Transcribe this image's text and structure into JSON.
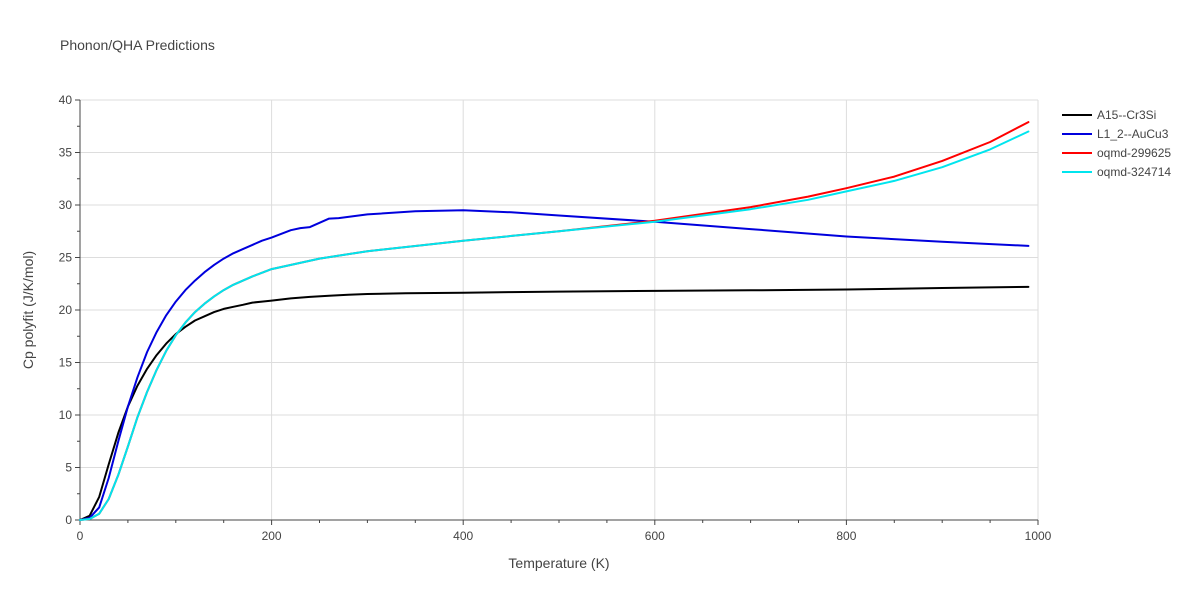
{
  "chart_data": {
    "type": "line",
    "title": "Phonon/QHA Predictions",
    "xlabel": "Temperature (K)",
    "ylabel": "Cp polyfit (J/K/mol)",
    "xlim": [
      0,
      1000
    ],
    "ylim": [
      0,
      40
    ],
    "x_ticks": [
      0,
      200,
      400,
      600,
      800,
      1000
    ],
    "y_ticks": [
      0,
      5,
      10,
      15,
      20,
      25,
      30,
      35,
      40
    ],
    "grid": true,
    "legend_position": "top-right",
    "series": [
      {
        "name": "A15--Cr3Si",
        "color": "#000000",
        "x": [
          0,
          10,
          20,
          30,
          40,
          50,
          60,
          70,
          80,
          90,
          100,
          110,
          120,
          130,
          140,
          150,
          160,
          170,
          180,
          190,
          200,
          220,
          240,
          260,
          280,
          300,
          340,
          400,
          450,
          500,
          600,
          700,
          800,
          900,
          990
        ],
        "y": [
          0,
          0.4,
          2.2,
          5.3,
          8.3,
          10.8,
          12.8,
          14.4,
          15.7,
          16.8,
          17.7,
          18.4,
          19.0,
          19.4,
          19.8,
          20.1,
          20.3,
          20.5,
          20.7,
          20.8,
          20.9,
          21.1,
          21.25,
          21.35,
          21.45,
          21.52,
          21.6,
          21.65,
          21.7,
          21.75,
          21.82,
          21.88,
          21.95,
          22.1,
          22.2
        ]
      },
      {
        "name": "L1_2--AuCu3",
        "color": "#0000dd",
        "x": [
          0,
          10,
          20,
          30,
          40,
          50,
          60,
          70,
          80,
          90,
          100,
          110,
          120,
          130,
          140,
          150,
          160,
          170,
          180,
          190,
          200,
          220,
          230,
          240,
          250,
          260,
          270,
          300,
          350,
          400,
          450,
          500,
          600,
          700,
          800,
          900,
          990
        ],
        "y": [
          0,
          0.2,
          1.2,
          4.0,
          7.5,
          10.8,
          13.6,
          16.0,
          17.9,
          19.5,
          20.8,
          21.9,
          22.8,
          23.6,
          24.3,
          24.9,
          25.4,
          25.8,
          26.2,
          26.6,
          26.9,
          27.6,
          27.8,
          27.9,
          28.3,
          28.7,
          28.75,
          29.1,
          29.4,
          29.5,
          29.3,
          29.0,
          28.4,
          27.7,
          27.0,
          26.5,
          26.1
        ]
      },
      {
        "name": "oqmd-299625",
        "color": "#ff0000",
        "x": [
          0,
          10,
          20,
          30,
          40,
          50,
          60,
          70,
          80,
          90,
          100,
          110,
          120,
          130,
          140,
          150,
          160,
          180,
          200,
          250,
          300,
          400,
          500,
          600,
          700,
          760,
          800,
          850,
          900,
          950,
          990
        ],
        "y": [
          0,
          0.1,
          0.6,
          2.0,
          4.3,
          7.0,
          9.8,
          12.2,
          14.3,
          16.1,
          17.6,
          18.8,
          19.8,
          20.6,
          21.3,
          21.9,
          22.4,
          23.2,
          23.9,
          24.9,
          25.6,
          26.6,
          27.5,
          28.5,
          29.8,
          30.8,
          31.6,
          32.7,
          34.2,
          36.0,
          37.9
        ]
      },
      {
        "name": "oqmd-324714",
        "color": "#00e5ee",
        "x": [
          0,
          10,
          20,
          30,
          40,
          50,
          60,
          70,
          80,
          90,
          100,
          110,
          120,
          130,
          140,
          150,
          160,
          180,
          200,
          250,
          300,
          400,
          500,
          600,
          700,
          760,
          800,
          850,
          900,
          950,
          990
        ],
        "y": [
          0,
          0.1,
          0.6,
          2.0,
          4.3,
          7.0,
          9.8,
          12.2,
          14.3,
          16.1,
          17.6,
          18.8,
          19.8,
          20.6,
          21.3,
          21.9,
          22.4,
          23.2,
          23.9,
          24.9,
          25.6,
          26.6,
          27.5,
          28.4,
          29.6,
          30.5,
          31.3,
          32.3,
          33.6,
          35.3,
          37.0
        ]
      }
    ]
  }
}
